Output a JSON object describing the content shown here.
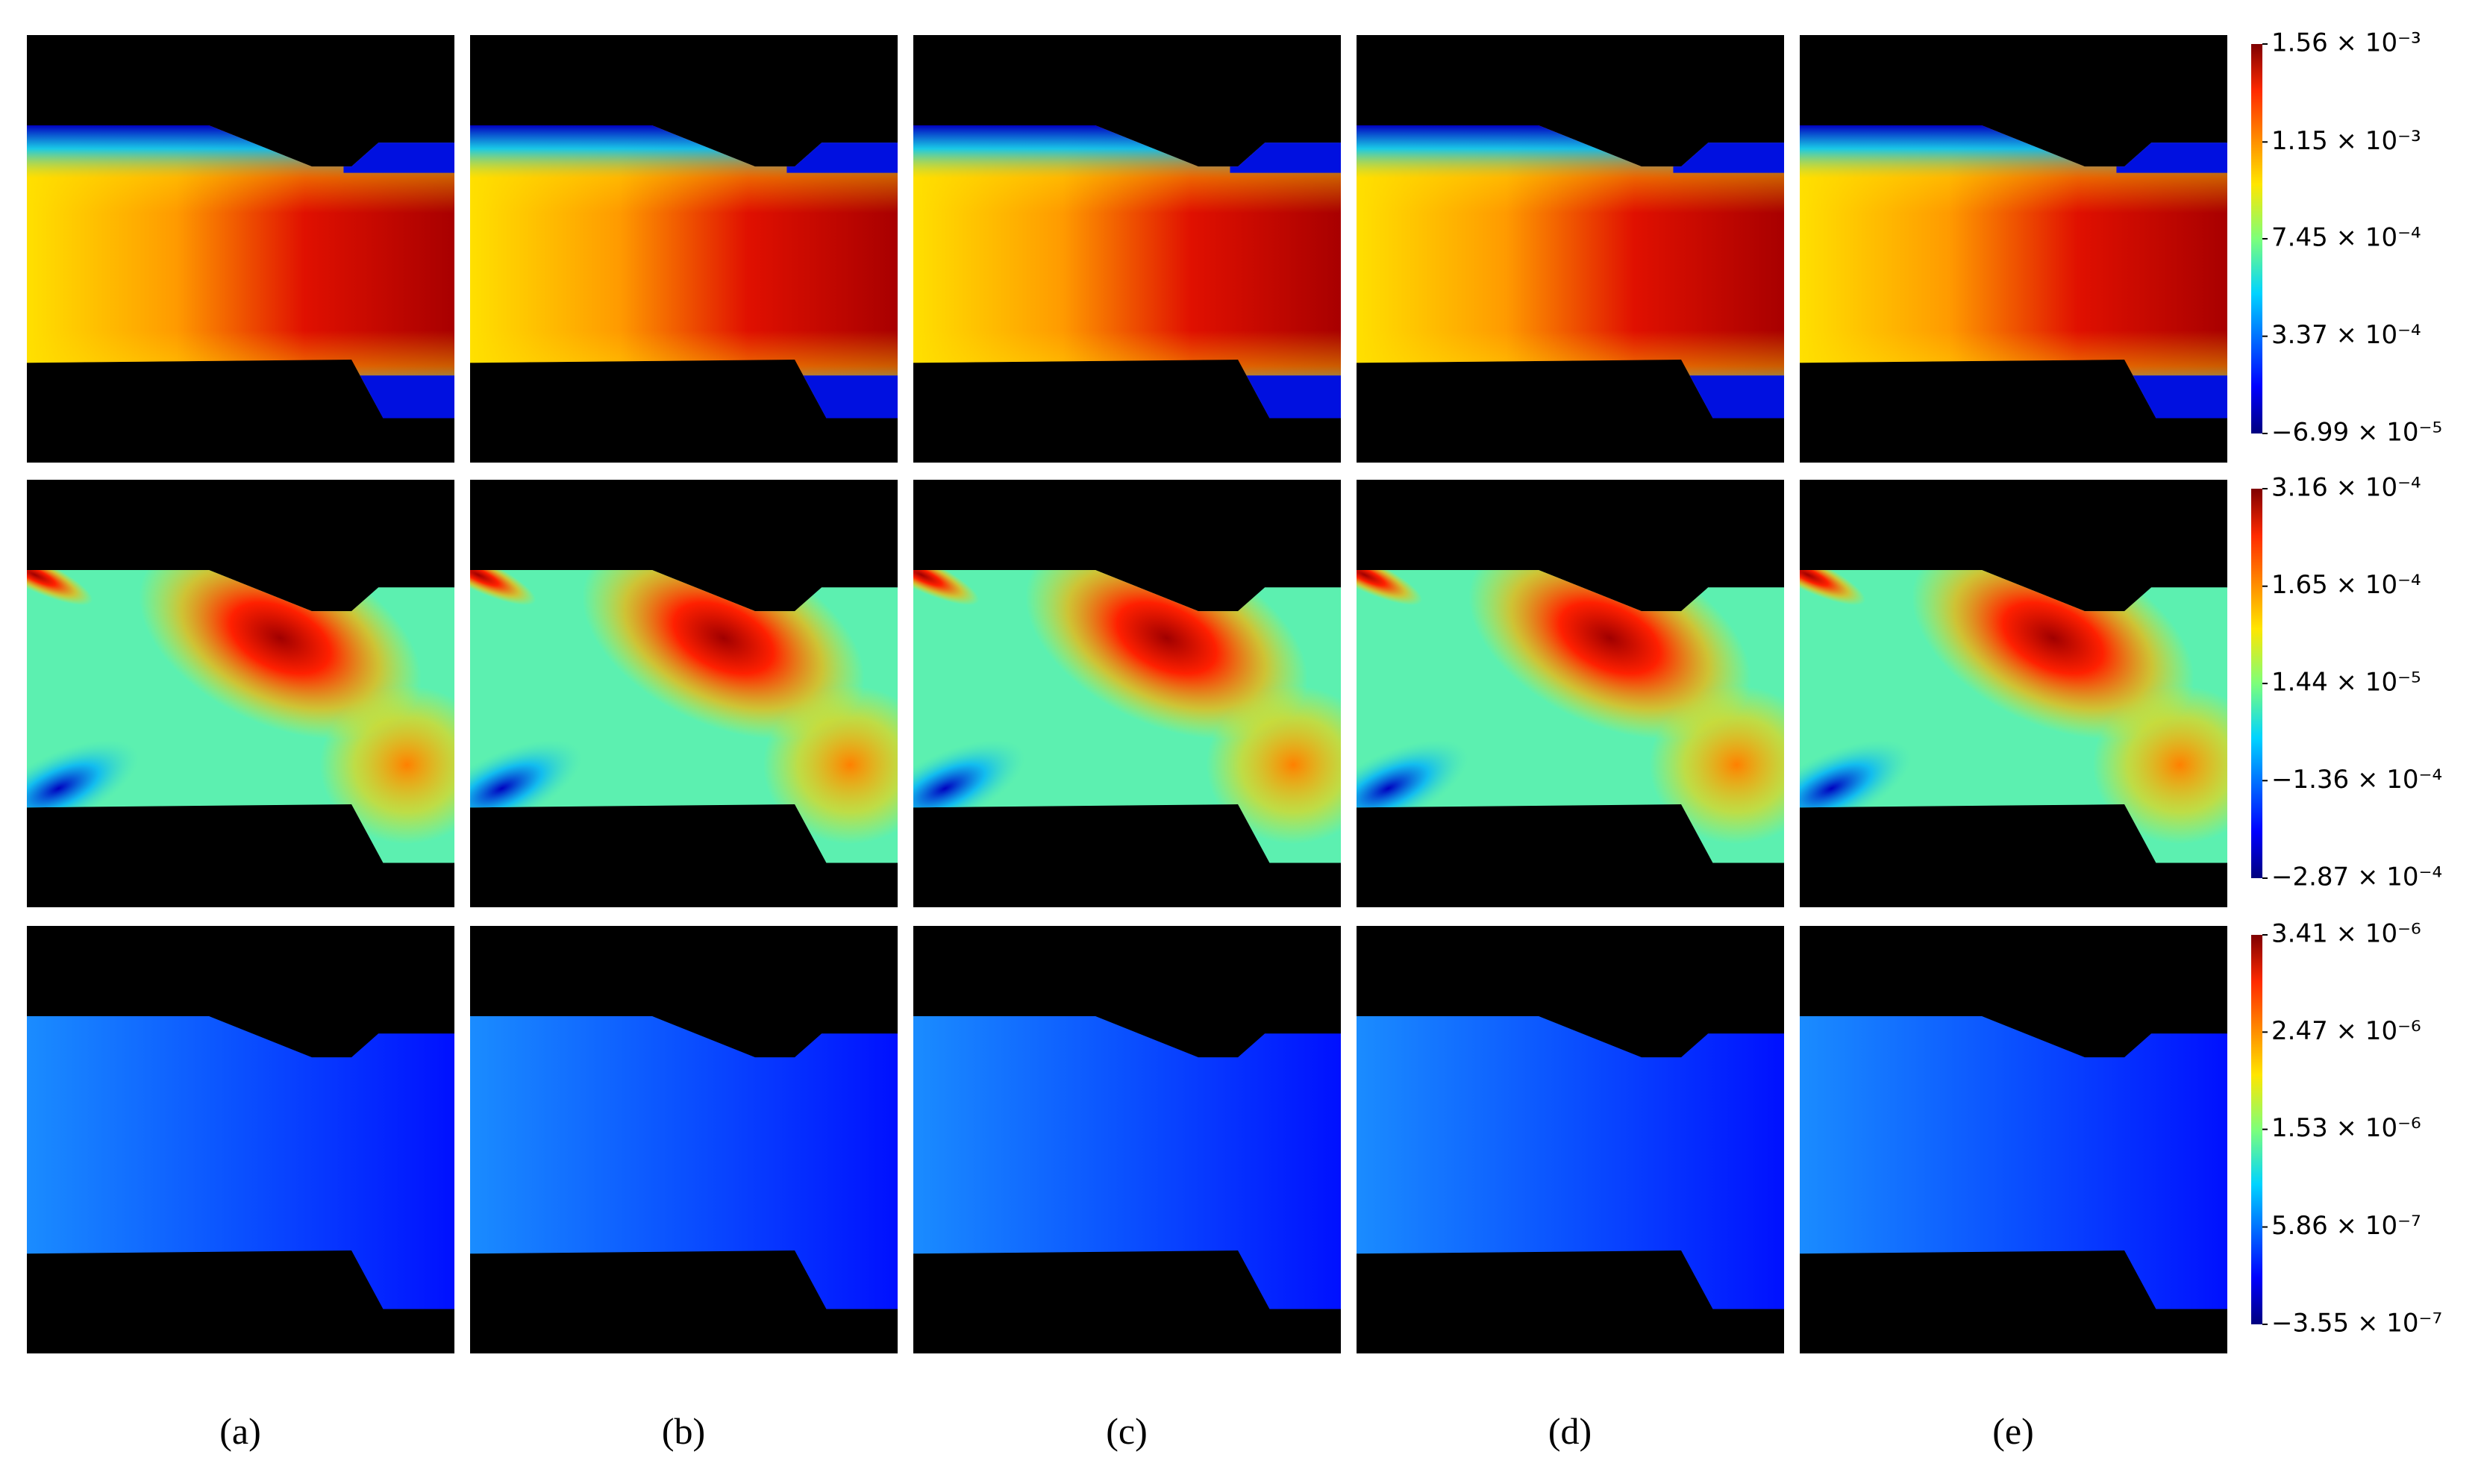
{
  "columns": [
    "(a)",
    "(b)",
    "(c)",
    "(d)",
    "(e)"
  ],
  "colorbars": [
    {
      "lim": [
        -6.99e-05,
        0.00156
      ],
      "ticks": [
        {
          "value": -6.99e-05,
          "label": "−6.99 × 10⁻⁵"
        },
        {
          "value": 0.000337,
          "label": "3.37 × 10⁻⁴"
        },
        {
          "value": 0.000745,
          "label": "7.45 × 10⁻⁴"
        },
        {
          "value": 0.00115,
          "label": "1.15 × 10⁻³"
        },
        {
          "value": 0.00156,
          "label": "1.56 × 10⁻³"
        }
      ]
    },
    {
      "lim": [
        -0.000287,
        0.000316
      ],
      "ticks": [
        {
          "value": -0.000287,
          "label": "−2.87 × 10⁻⁴"
        },
        {
          "value": -0.000136,
          "label": "−1.36 × 10⁻⁴"
        },
        {
          "value": 1.44e-05,
          "label": "1.44 × 10⁻⁵"
        },
        {
          "value": 0.000165,
          "label": "1.65 × 10⁻⁴"
        },
        {
          "value": 0.000316,
          "label": "3.16 × 10⁻⁴"
        }
      ]
    },
    {
      "lim": [
        -3.55e-07,
        3.41e-06
      ],
      "ticks": [
        {
          "value": -3.55e-07,
          "label": "−3.55 × 10⁻⁷"
        },
        {
          "value": 5.86e-07,
          "label": "5.86 × 10⁻⁷"
        },
        {
          "value": 1.53e-06,
          "label": "1.53 × 10⁻⁶"
        },
        {
          "value": 2.47e-06,
          "label": "2.47 × 10⁻⁶"
        },
        {
          "value": 3.41e-06,
          "label": "3.41 × 10⁻⁶"
        }
      ]
    }
  ]
}
